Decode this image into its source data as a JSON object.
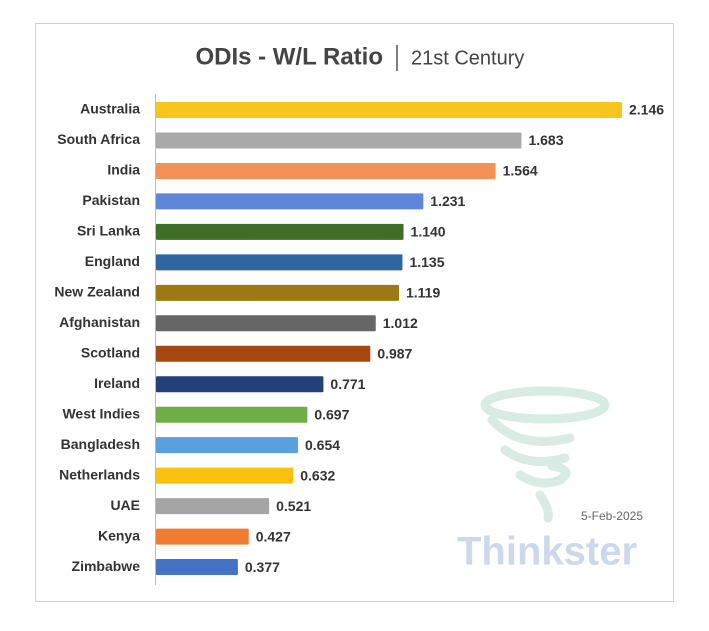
{
  "chart_data": {
    "type": "bar",
    "orientation": "horizontal",
    "title": "ODIs - W/L Ratio",
    "subtitle": "21st Century",
    "categories": [
      "Australia",
      "South Africa",
      "India",
      "Pakistan",
      "Sri Lanka",
      "England",
      "New Zealand",
      "Afghanistan",
      "Scotland",
      "Ireland",
      "West Indies",
      "Bangladesh",
      "Netherlands",
      "UAE",
      "Kenya",
      "Zimbabwe"
    ],
    "values": [
      2.146,
      1.683,
      1.564,
      1.231,
      1.14,
      1.135,
      1.119,
      1.012,
      0.987,
      0.771,
      0.697,
      0.654,
      0.632,
      0.521,
      0.427,
      0.377
    ],
    "value_labels": [
      "2.146",
      "1.683",
      "1.564",
      "1.231",
      "1.140",
      "1.135",
      "1.119",
      "1.012",
      "0.987",
      "0.771",
      "0.697",
      "0.654",
      "0.632",
      "0.521",
      "0.427",
      "0.377"
    ],
    "colors": [
      "#f7c51e",
      "#a9a9a9",
      "#f39257",
      "#5f87d9",
      "#3f6e27",
      "#2f65a1",
      "#9c7912",
      "#666666",
      "#a6480f",
      "#24407b",
      "#6fae46",
      "#5a9fe0",
      "#fbc110",
      "#a5a5a5",
      "#ef7c30",
      "#4472c4"
    ],
    "annotations": [
      "5-Feb-2025",
      "Thinkster"
    ]
  }
}
